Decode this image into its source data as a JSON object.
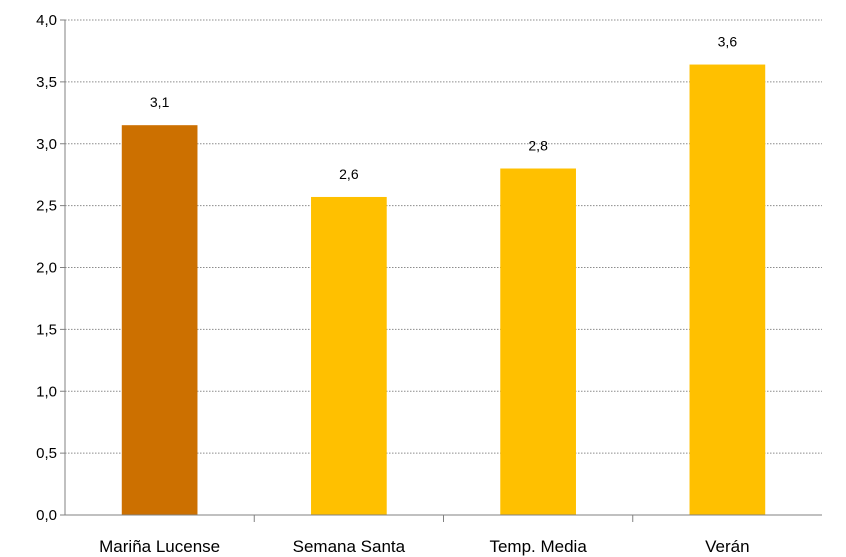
{
  "chart_data": {
    "type": "bar",
    "title": "",
    "xlabel": "",
    "ylabel": "",
    "categories": [
      "Mariña Lucense",
      "Semana Santa",
      "Temp. Media",
      "Verán"
    ],
    "values": [
      3.15,
      2.57,
      2.8,
      3.64
    ],
    "data_labels": [
      "3,1",
      "2,6",
      "2,8",
      "3,6"
    ],
    "bar_colors": [
      "#cc7000",
      "#ffc000",
      "#ffc000",
      "#ffc000"
    ],
    "ylim": [
      0,
      4.0
    ],
    "y_ticks": [
      0,
      0.5,
      1.0,
      1.5,
      2.0,
      2.5,
      3.0,
      3.5,
      4.0
    ],
    "y_tick_labels": [
      "0,0",
      "0,5",
      "1,0",
      "1,5",
      "2,0",
      "2,5",
      "3,0",
      "3,5",
      "4,0"
    ],
    "grid": true,
    "legend": "none"
  }
}
